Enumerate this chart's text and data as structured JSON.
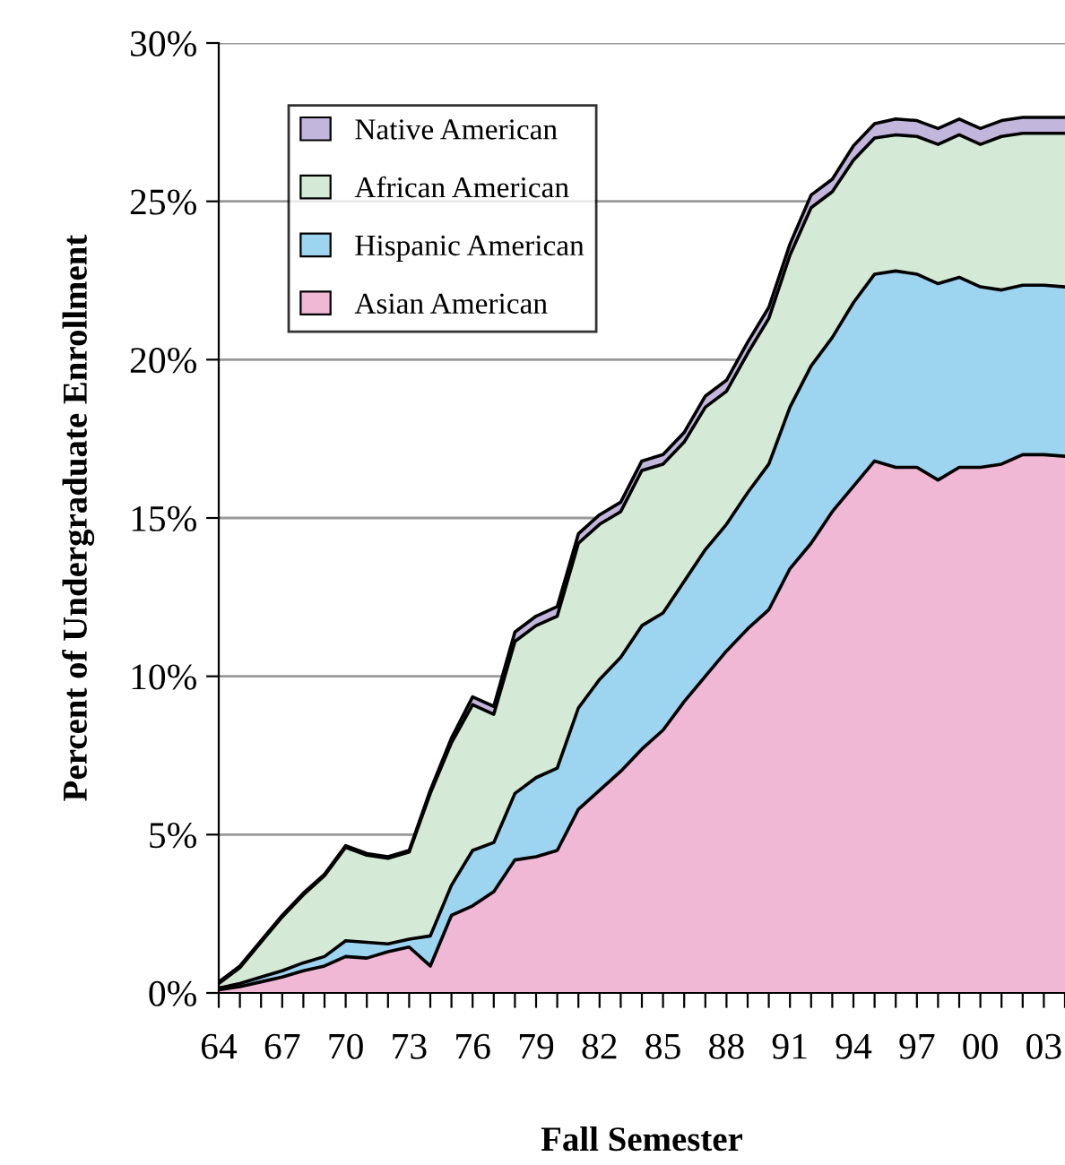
{
  "chart_data": {
    "type": "area",
    "stacked": true,
    "xlabel": "Fall Semester",
    "ylabel": "Percent of Undergraduate Enrollment",
    "x": [
      1964,
      1965,
      1966,
      1967,
      1968,
      1969,
      1970,
      1971,
      1972,
      1973,
      1974,
      1975,
      1976,
      1977,
      1978,
      1979,
      1980,
      1981,
      1982,
      1983,
      1984,
      1985,
      1986,
      1987,
      1988,
      1989,
      1990,
      1991,
      1992,
      1993,
      1994,
      1995,
      1996,
      1997,
      1998,
      1999,
      2000,
      2001,
      2002,
      2003,
      2004
    ],
    "series": [
      {
        "name": "Asian American",
        "color": "#f0b8d4",
        "values": [
          0.1,
          0.2,
          0.35,
          0.5,
          0.7,
          0.85,
          1.15,
          1.1,
          1.3,
          1.45,
          0.85,
          2.45,
          2.75,
          3.2,
          4.2,
          4.3,
          4.5,
          5.8,
          6.4,
          7.0,
          7.7,
          8.3,
          9.2,
          10.0,
          10.8,
          11.5,
          12.1,
          13.4,
          14.2,
          15.2,
          16.0,
          16.8,
          16.6,
          16.6,
          16.2,
          16.6,
          16.6,
          16.7,
          17.0,
          17.0,
          16.95
        ]
      },
      {
        "name": "Hispanic American",
        "color": "#9dd4f0",
        "values": [
          0.05,
          0.1,
          0.15,
          0.2,
          0.25,
          0.3,
          0.5,
          0.5,
          0.25,
          0.25,
          0.95,
          0.95,
          1.75,
          1.55,
          2.1,
          2.5,
          2.6,
          3.2,
          3.5,
          3.6,
          3.9,
          3.7,
          3.8,
          4.0,
          4.0,
          4.3,
          4.6,
          5.1,
          5.6,
          5.5,
          5.8,
          5.9,
          6.2,
          6.1,
          6.2,
          6.0,
          5.7,
          5.5,
          5.35,
          5.35,
          5.35
        ]
      },
      {
        "name": "African American",
        "color": "#d4ead6",
        "values": [
          0.15,
          0.5,
          1.1,
          1.7,
          2.15,
          2.55,
          2.95,
          2.75,
          2.7,
          2.75,
          4.5,
          4.5,
          4.6,
          4.05,
          4.8,
          4.8,
          4.8,
          5.2,
          4.9,
          4.6,
          4.9,
          4.7,
          4.4,
          4.5,
          4.2,
          4.4,
          4.6,
          4.8,
          5.0,
          4.6,
          4.5,
          4.3,
          4.3,
          4.35,
          4.4,
          4.5,
          4.5,
          4.85,
          4.8,
          4.8,
          4.85
        ]
      },
      {
        "name": "Native American",
        "color": "#c3b6dc",
        "values": [
          0.05,
          0.05,
          0.05,
          0.05,
          0.05,
          0.05,
          0.05,
          0.05,
          0.05,
          0.05,
          0.1,
          0.15,
          0.25,
          0.25,
          0.3,
          0.3,
          0.3,
          0.3,
          0.3,
          0.3,
          0.3,
          0.3,
          0.3,
          0.35,
          0.35,
          0.35,
          0.35,
          0.35,
          0.4,
          0.4,
          0.45,
          0.45,
          0.5,
          0.5,
          0.5,
          0.5,
          0.5,
          0.5,
          0.5,
          0.5,
          0.5
        ]
      }
    ],
    "xlim": [
      1964,
      2004
    ],
    "xticks": [
      {
        "value": 1964,
        "label": "64"
      },
      {
        "value": 1965,
        "label": null
      },
      {
        "value": 1966,
        "label": null
      },
      {
        "value": 1967,
        "label": "67"
      },
      {
        "value": 1968,
        "label": null
      },
      {
        "value": 1969,
        "label": null
      },
      {
        "value": 1970,
        "label": "70"
      },
      {
        "value": 1971,
        "label": null
      },
      {
        "value": 1972,
        "label": null
      },
      {
        "value": 1973,
        "label": "73"
      },
      {
        "value": 1974,
        "label": null
      },
      {
        "value": 1975,
        "label": null
      },
      {
        "value": 1976,
        "label": "76"
      },
      {
        "value": 1977,
        "label": null
      },
      {
        "value": 1978,
        "label": null
      },
      {
        "value": 1979,
        "label": "79"
      },
      {
        "value": 1980,
        "label": null
      },
      {
        "value": 1981,
        "label": null
      },
      {
        "value": 1982,
        "label": "82"
      },
      {
        "value": 1983,
        "label": null
      },
      {
        "value": 1984,
        "label": null
      },
      {
        "value": 1985,
        "label": "85"
      },
      {
        "value": 1986,
        "label": null
      },
      {
        "value": 1987,
        "label": null
      },
      {
        "value": 1988,
        "label": "88"
      },
      {
        "value": 1989,
        "label": null
      },
      {
        "value": 1990,
        "label": null
      },
      {
        "value": 1991,
        "label": "91"
      },
      {
        "value": 1992,
        "label": null
      },
      {
        "value": 1993,
        "label": null
      },
      {
        "value": 1994,
        "label": "94"
      },
      {
        "value": 1995,
        "label": null
      },
      {
        "value": 1996,
        "label": null
      },
      {
        "value": 1997,
        "label": "97"
      },
      {
        "value": 1998,
        "label": null
      },
      {
        "value": 1999,
        "label": null
      },
      {
        "value": 2000,
        "label": "00"
      },
      {
        "value": 2001,
        "label": null
      },
      {
        "value": 2002,
        "label": null
      },
      {
        "value": 2003,
        "label": "03"
      },
      {
        "value": 2004,
        "label": null
      }
    ],
    "ylim": [
      0,
      30
    ],
    "yticks": [
      {
        "value": 0,
        "label": "0%"
      },
      {
        "value": 5,
        "label": "5%"
      },
      {
        "value": 10,
        "label": "10%"
      },
      {
        "value": 15,
        "label": "15%"
      },
      {
        "value": 20,
        "label": "20%"
      },
      {
        "value": 25,
        "label": "25%"
      },
      {
        "value": 30,
        "label": "30%"
      }
    ],
    "grid": "y",
    "legend": "top left"
  }
}
